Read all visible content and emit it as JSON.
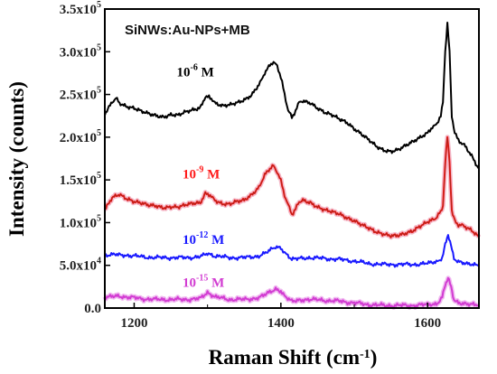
{
  "chart_data": {
    "type": "line",
    "title": "SiNWs:Au-NPs+MB",
    "xlabel": "Raman Shift (cm",
    "xlabel_sup": "-1",
    "xlabel_close": ")",
    "ylabel": "Intensity (counts)",
    "xlim": [
      1160,
      1670
    ],
    "ylim": [
      0,
      350000
    ],
    "x_ticks": [
      1200,
      1400,
      1600
    ],
    "x_tick_labels": [
      "1200",
      "1400",
      "1600"
    ],
    "y_ticks": [
      0,
      50000,
      100000,
      150000,
      200000,
      250000,
      300000,
      350000
    ],
    "y_tick_labels": [
      {
        "base": "0.0",
        "exp": ""
      },
      {
        "base": "5.0x10",
        "exp": "4"
      },
      {
        "base": "1.0x10",
        "exp": "5"
      },
      {
        "base": "1.5x10",
        "exp": "5"
      },
      {
        "base": "2.0x10",
        "exp": "5"
      },
      {
        "base": "2.5x10",
        "exp": "5"
      },
      {
        "base": "3.0x10",
        "exp": "5"
      },
      {
        "base": "3.5x10",
        "exp": "5"
      }
    ],
    "series": [
      {
        "name": "10-6 M",
        "label_base": "10",
        "label_exp": "-6",
        "label_unit": " M",
        "color": "#000000",
        "x": [
          1160,
          1170,
          1175,
          1180,
          1190,
          1200,
          1210,
          1220,
          1230,
          1240,
          1250,
          1260,
          1270,
          1280,
          1290,
          1297,
          1302,
          1310,
          1320,
          1330,
          1340,
          1350,
          1360,
          1370,
          1378,
          1385,
          1390,
          1395,
          1400,
          1405,
          1410,
          1415,
          1420,
          1425,
          1430,
          1440,
          1450,
          1460,
          1470,
          1480,
          1490,
          1500,
          1510,
          1520,
          1530,
          1540,
          1550,
          1560,
          1570,
          1580,
          1590,
          1600,
          1608,
          1613,
          1618,
          1621,
          1624,
          1627,
          1630,
          1633,
          1637,
          1642,
          1650,
          1660,
          1670
        ],
        "y": [
          228000,
          242000,
          245000,
          240000,
          235000,
          233000,
          230000,
          228000,
          226000,
          224000,
          226000,
          225000,
          229000,
          232000,
          235000,
          248000,
          247000,
          240000,
          236000,
          237000,
          240000,
          244000,
          250000,
          262000,
          275000,
          285000,
          287000,
          284000,
          270000,
          250000,
          232000,
          222000,
          232000,
          240000,
          243000,
          240000,
          233000,
          228000,
          226000,
          222000,
          218000,
          210000,
          203000,
          196000,
          189000,
          185000,
          184000,
          186000,
          190000,
          194000,
          199000,
          205000,
          212000,
          217000,
          224000,
          240000,
          300000,
          333000,
          300000,
          225000,
          205000,
          197000,
          190000,
          178000,
          163000
        ]
      },
      {
        "name": "10-9 M",
        "label_base": "10",
        "label_exp": "-9",
        "label_unit": " M",
        "color": "#ff1a1a",
        "x": [
          1160,
          1170,
          1180,
          1190,
          1200,
          1210,
          1220,
          1230,
          1240,
          1250,
          1260,
          1270,
          1280,
          1290,
          1297,
          1302,
          1310,
          1320,
          1330,
          1340,
          1350,
          1360,
          1370,
          1378,
          1385,
          1390,
          1395,
          1400,
          1405,
          1410,
          1415,
          1420,
          1425,
          1430,
          1440,
          1450,
          1460,
          1470,
          1480,
          1490,
          1500,
          1510,
          1520,
          1530,
          1540,
          1550,
          1560,
          1570,
          1580,
          1590,
          1600,
          1608,
          1613,
          1618,
          1621,
          1624,
          1627,
          1630,
          1633,
          1637,
          1642,
          1650,
          1660,
          1670
        ],
        "y": [
          115000,
          130000,
          134000,
          128000,
          124000,
          122000,
          120000,
          120000,
          118000,
          119000,
          118000,
          120000,
          122000,
          123000,
          135000,
          132000,
          127000,
          122000,
          121000,
          124000,
          126000,
          133000,
          142000,
          155000,
          163000,
          166000,
          160000,
          148000,
          133000,
          120000,
          110000,
          116000,
          124000,
          127000,
          124000,
          118000,
          114000,
          112000,
          110000,
          106000,
          103000,
          98000,
          93000,
          88000,
          86000,
          85000,
          86000,
          88000,
          90000,
          95000,
          100000,
          104000,
          107000,
          112000,
          120000,
          170000,
          201000,
          172000,
          115000,
          102000,
          98000,
          95000,
          90000,
          83000
        ]
      },
      {
        "name": "10-12 M",
        "label_base": "10",
        "label_exp": "-12",
        "label_unit": " M",
        "color": "#1a1aff",
        "x": [
          1160,
          1175,
          1190,
          1210,
          1230,
          1250,
          1270,
          1290,
          1300,
          1310,
          1330,
          1350,
          1370,
          1385,
          1393,
          1400,
          1408,
          1415,
          1425,
          1440,
          1460,
          1480,
          1500,
          1520,
          1540,
          1560,
          1580,
          1600,
          1612,
          1620,
          1624,
          1628,
          1632,
          1636,
          1642,
          1655,
          1670
        ],
        "y": [
          60000,
          63000,
          62000,
          60000,
          59000,
          59000,
          59000,
          60000,
          64000,
          61000,
          59000,
          59000,
          61000,
          67000,
          72000,
          70000,
          63000,
          58000,
          59000,
          59000,
          58000,
          57000,
          55000,
          52000,
          51000,
          51000,
          51000,
          52000,
          54000,
          59000,
          75000,
          86000,
          72000,
          58000,
          54000,
          52000,
          49000
        ]
      },
      {
        "name": "10-15 M",
        "label_base": "10",
        "label_exp": "-15",
        "label_unit": " M",
        "color": "#d23cd2",
        "x": [
          1160,
          1175,
          1190,
          1210,
          1230,
          1250,
          1270,
          1290,
          1300,
          1310,
          1330,
          1350,
          1370,
          1385,
          1393,
          1400,
          1408,
          1415,
          1425,
          1440,
          1460,
          1480,
          1500,
          1520,
          1540,
          1560,
          1580,
          1600,
          1612,
          1620,
          1624,
          1628,
          1632,
          1636,
          1642,
          1655,
          1670
        ],
        "y": [
          12000,
          15000,
          13000,
          11000,
          10000,
          10000,
          10000,
          11000,
          17000,
          13000,
          10000,
          10000,
          12000,
          18000,
          23000,
          20000,
          12000,
          9000,
          10000,
          10000,
          9000,
          8000,
          6000,
          4000,
          3000,
          3000,
          3000,
          4000,
          5000,
          12000,
          28000,
          36000,
          24000,
          9000,
          5000,
          4000,
          3000
        ]
      }
    ]
  }
}
